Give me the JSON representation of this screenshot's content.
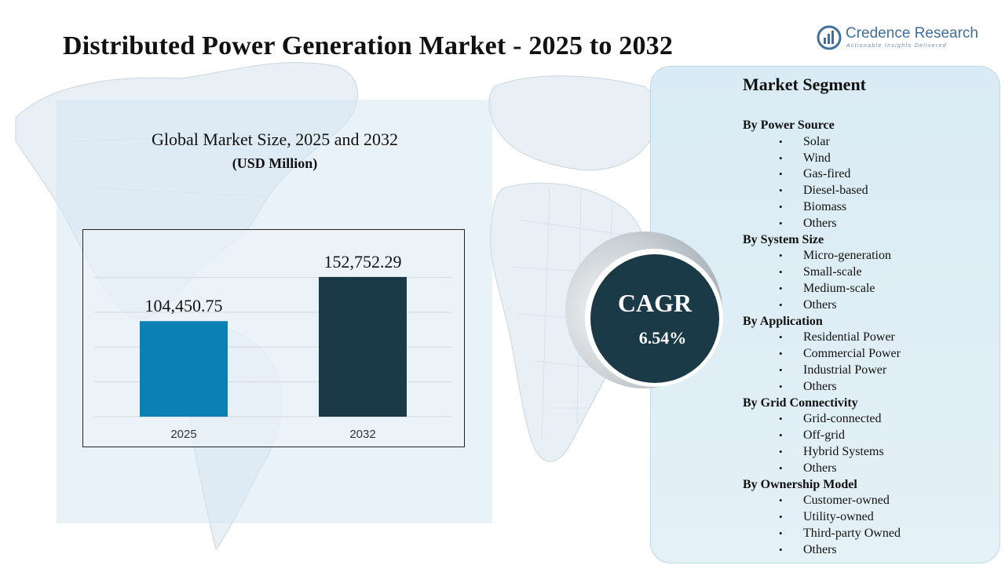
{
  "header": {
    "title": "Distributed Power Generation Market - 2025 to 2032"
  },
  "brand": {
    "name": "Credence Research",
    "tagline": "Actionable Insights Delivered",
    "icon": "bar-chart-logo-icon",
    "color": "#3f6f9a"
  },
  "chart_data": {
    "type": "bar",
    "title": "Global Market Size, 2025 and 2032",
    "unit": "(USD Million)",
    "categories": [
      "2025",
      "2032"
    ],
    "values": [
      104450.75,
      152752.29
    ],
    "value_labels": [
      "104,450.75",
      "152,752.29"
    ],
    "colors": [
      "#0a80b3",
      "#1a3a47"
    ],
    "ylim": [
      0,
      175000
    ],
    "grid": true,
    "legend": "none"
  },
  "cagr": {
    "label": "CAGR",
    "value": "6.54%"
  },
  "segments": {
    "title": "Market Segment",
    "groups": [
      {
        "label": "By Power Source",
        "items": [
          "Solar",
          "Wind",
          "Gas-fired",
          "Diesel-based",
          "Biomass",
          "Others"
        ]
      },
      {
        "label": "By System  Size",
        "items": [
          "Micro-generation",
          "Small-scale",
          "Medium-scale",
          "Others"
        ]
      },
      {
        "label": "By Application",
        "items": [
          "Residential Power",
          "Commercial Power",
          "Industrial  Power",
          "Others"
        ]
      },
      {
        "label": "By Grid Connectivity",
        "items": [
          "Grid-connected",
          "Off-grid",
          "Hybrid Systems",
          "Others"
        ]
      },
      {
        "label": "By Ownership Model",
        "items": [
          "Customer-owned",
          "Utility-owned",
          "Third-party  Owned",
          "Others"
        ]
      }
    ]
  }
}
